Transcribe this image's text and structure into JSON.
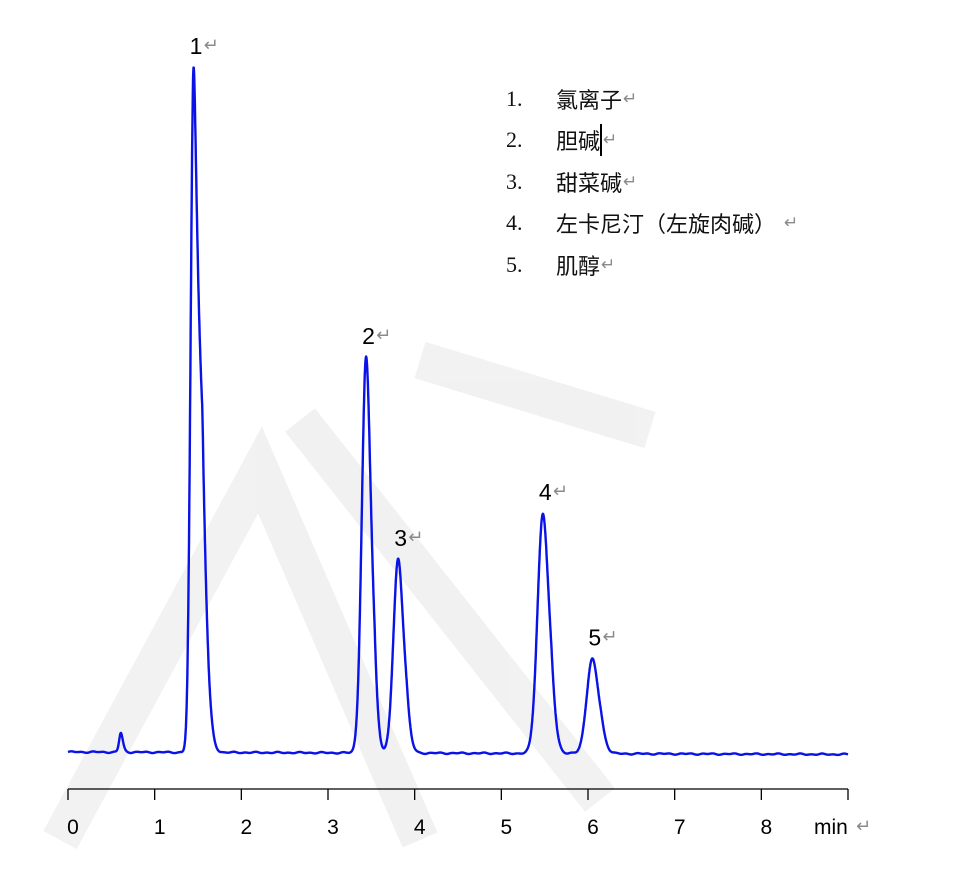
{
  "chart_data": {
    "type": "line",
    "title": "",
    "xlabel": "",
    "x_unit": "min",
    "ylabel": "",
    "xlim": [
      0,
      9
    ],
    "xticks": [
      0,
      1,
      2,
      3,
      4,
      5,
      6,
      7,
      8
    ],
    "y_axis_shown": false,
    "grid": false,
    "line_color": "#0a12e6",
    "paragraph_mark": "↵",
    "minor_peaks": [
      {
        "rt": 0.61,
        "relative_height": 2.8
      }
    ],
    "peaks": [
      {
        "label": "1",
        "rt": 1.45,
        "relative_height": 100
      },
      {
        "label": "2",
        "rt": 3.44,
        "relative_height": 57.7
      },
      {
        "label": "3",
        "rt": 3.81,
        "relative_height": 28.3
      },
      {
        "label": "4",
        "rt": 5.48,
        "relative_height": 35.0
      },
      {
        "label": "5",
        "rt": 6.05,
        "relative_height": 13.8
      }
    ],
    "legend": [
      {
        "num": "1.",
        "name": "氯离子"
      },
      {
        "num": "2.",
        "name": "胆碱"
      },
      {
        "num": "3.",
        "name": "甜菜碱"
      },
      {
        "num": "4.",
        "name": "左卡尼汀（左旋肉碱）"
      },
      {
        "num": "5.",
        "name": "肌醇"
      }
    ]
  }
}
